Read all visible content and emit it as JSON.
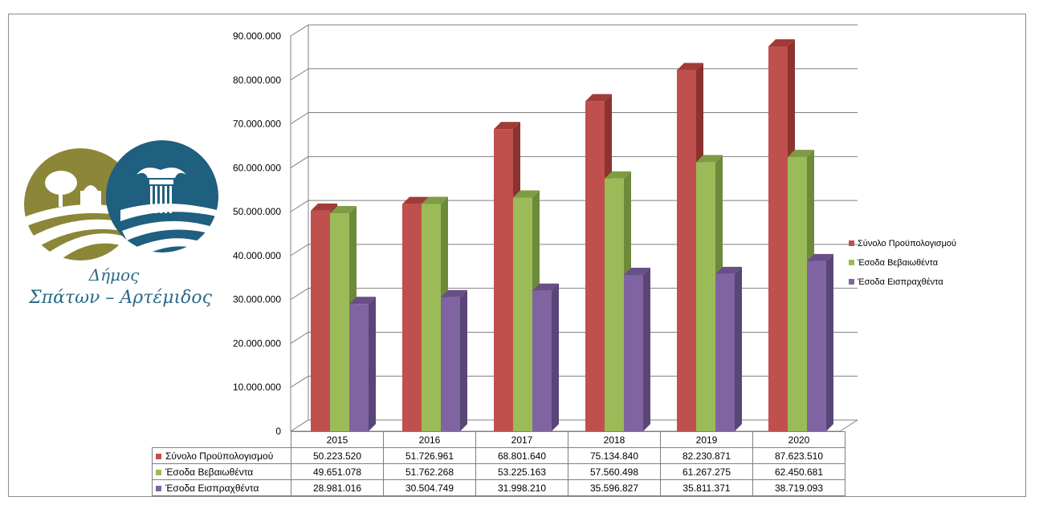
{
  "logo": {
    "line1": "Δήμος",
    "line2": "Σπάτων – Αρτέμιδος"
  },
  "colors": {
    "series": [
      "#c0504d",
      "#9bbb59",
      "#8064a2"
    ],
    "series_dark": [
      "#8a3330",
      "#6d8a3a",
      "#5a4578"
    ],
    "series_top": [
      "#a13b38",
      "#7f9c45",
      "#684f87"
    ],
    "grid": "#7f7f7f",
    "logo_olive": "#8c8638",
    "logo_blue": "#1f5f7f"
  },
  "chart_data": {
    "type": "bar",
    "categories": [
      "2015",
      "2016",
      "2017",
      "2018",
      "2019",
      "2020"
    ],
    "series": [
      {
        "name": "Σύνολο Προϋπολογισμού",
        "values": [
          50223520,
          51726961,
          68801640,
          75134840,
          82230871,
          87623510
        ],
        "labels": [
          "50.223.520",
          "51.726.961",
          "68.801.640",
          "75.134.840",
          "82.230.871",
          "87.623.510"
        ]
      },
      {
        "name": "Έσοδα Βεβαιωθέντα",
        "values": [
          49651078,
          51762268,
          53225163,
          57560498,
          61267275,
          62450681
        ],
        "labels": [
          "49.651.078",
          "51.762.268",
          "53.225.163",
          "57.560.498",
          "61.267.275",
          "62.450.681"
        ]
      },
      {
        "name": "Έσοδα Εισπραχθέντα",
        "values": [
          28981016,
          30504749,
          31998210,
          35596827,
          35811371,
          38719093
        ],
        "labels": [
          "28.981.016",
          "30.504.749",
          "31.998.210",
          "35.596.827",
          "35.811.371",
          "38.719.093"
        ]
      }
    ],
    "y_ticks": [
      "0",
      "10.000.000",
      "20.000.000",
      "30.000.000",
      "40.000.000",
      "50.000.000",
      "60.000.000",
      "70.000.000",
      "80.000.000",
      "90.000.000"
    ],
    "ylim": [
      0,
      90000000
    ],
    "grid": true,
    "legend_position": "right",
    "data_table": true
  }
}
